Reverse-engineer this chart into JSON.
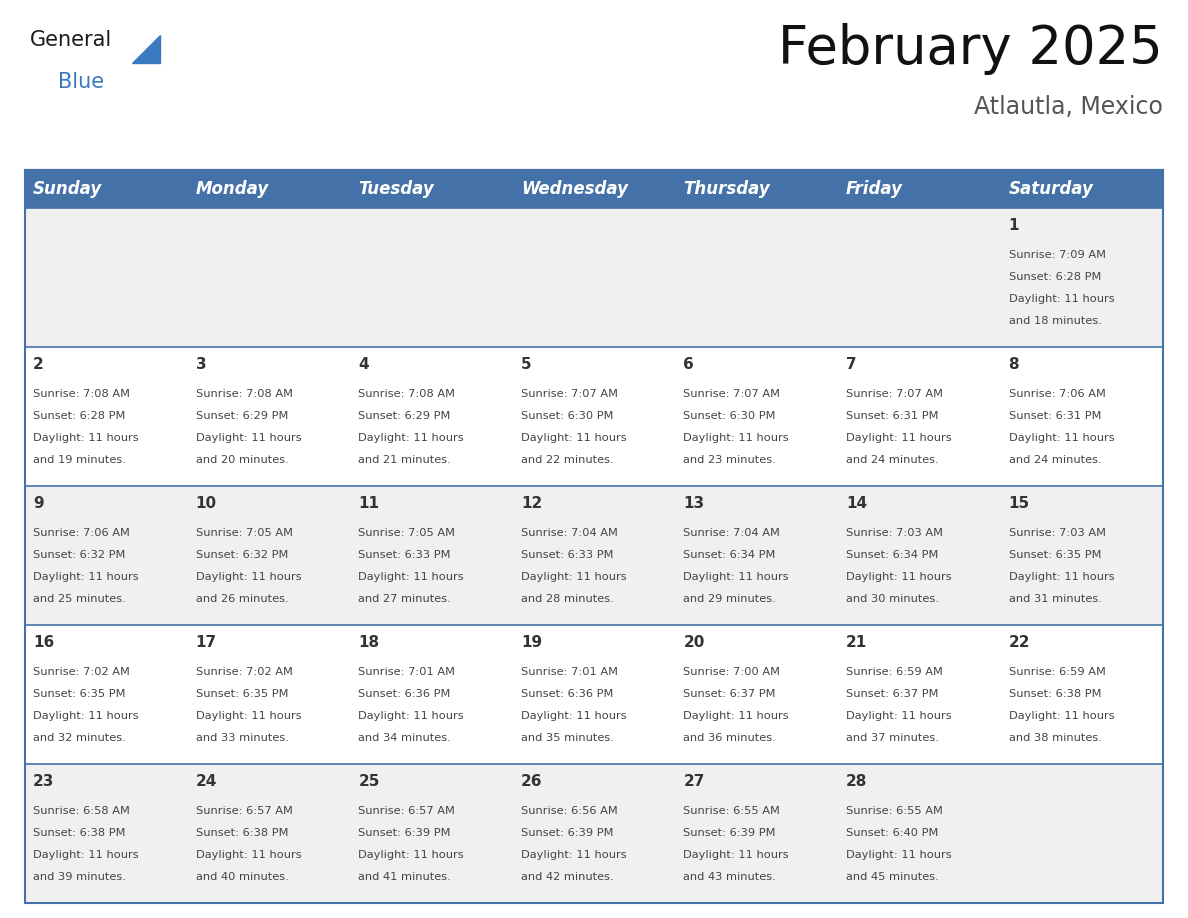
{
  "title": "February 2025",
  "subtitle": "Atlautla, Mexico",
  "header_bg_color": "#4472a8",
  "header_text_color": "#ffffff",
  "row_bg_colors": [
    "#f0f0f0",
    "#ffffff"
  ],
  "border_color": "#4472a8",
  "day_headers": [
    "Sunday",
    "Monday",
    "Tuesday",
    "Wednesday",
    "Thursday",
    "Friday",
    "Saturday"
  ],
  "days": [
    {
      "day": 1,
      "col": 6,
      "row": 0,
      "sunrise": "7:09 AM",
      "sunset": "6:28 PM",
      "daylight": "11 hours and 18 minutes."
    },
    {
      "day": 2,
      "col": 0,
      "row": 1,
      "sunrise": "7:08 AM",
      "sunset": "6:28 PM",
      "daylight": "11 hours and 19 minutes."
    },
    {
      "day": 3,
      "col": 1,
      "row": 1,
      "sunrise": "7:08 AM",
      "sunset": "6:29 PM",
      "daylight": "11 hours and 20 minutes."
    },
    {
      "day": 4,
      "col": 2,
      "row": 1,
      "sunrise": "7:08 AM",
      "sunset": "6:29 PM",
      "daylight": "11 hours and 21 minutes."
    },
    {
      "day": 5,
      "col": 3,
      "row": 1,
      "sunrise": "7:07 AM",
      "sunset": "6:30 PM",
      "daylight": "11 hours and 22 minutes."
    },
    {
      "day": 6,
      "col": 4,
      "row": 1,
      "sunrise": "7:07 AM",
      "sunset": "6:30 PM",
      "daylight": "11 hours and 23 minutes."
    },
    {
      "day": 7,
      "col": 5,
      "row": 1,
      "sunrise": "7:07 AM",
      "sunset": "6:31 PM",
      "daylight": "11 hours and 24 minutes."
    },
    {
      "day": 8,
      "col": 6,
      "row": 1,
      "sunrise": "7:06 AM",
      "sunset": "6:31 PM",
      "daylight": "11 hours and 24 minutes."
    },
    {
      "day": 9,
      "col": 0,
      "row": 2,
      "sunrise": "7:06 AM",
      "sunset": "6:32 PM",
      "daylight": "11 hours and 25 minutes."
    },
    {
      "day": 10,
      "col": 1,
      "row": 2,
      "sunrise": "7:05 AM",
      "sunset": "6:32 PM",
      "daylight": "11 hours and 26 minutes."
    },
    {
      "day": 11,
      "col": 2,
      "row": 2,
      "sunrise": "7:05 AM",
      "sunset": "6:33 PM",
      "daylight": "11 hours and 27 minutes."
    },
    {
      "day": 12,
      "col": 3,
      "row": 2,
      "sunrise": "7:04 AM",
      "sunset": "6:33 PM",
      "daylight": "11 hours and 28 minutes."
    },
    {
      "day": 13,
      "col": 4,
      "row": 2,
      "sunrise": "7:04 AM",
      "sunset": "6:34 PM",
      "daylight": "11 hours and 29 minutes."
    },
    {
      "day": 14,
      "col": 5,
      "row": 2,
      "sunrise": "7:03 AM",
      "sunset": "6:34 PM",
      "daylight": "11 hours and 30 minutes."
    },
    {
      "day": 15,
      "col": 6,
      "row": 2,
      "sunrise": "7:03 AM",
      "sunset": "6:35 PM",
      "daylight": "11 hours and 31 minutes."
    },
    {
      "day": 16,
      "col": 0,
      "row": 3,
      "sunrise": "7:02 AM",
      "sunset": "6:35 PM",
      "daylight": "11 hours and 32 minutes."
    },
    {
      "day": 17,
      "col": 1,
      "row": 3,
      "sunrise": "7:02 AM",
      "sunset": "6:35 PM",
      "daylight": "11 hours and 33 minutes."
    },
    {
      "day": 18,
      "col": 2,
      "row": 3,
      "sunrise": "7:01 AM",
      "sunset": "6:36 PM",
      "daylight": "11 hours and 34 minutes."
    },
    {
      "day": 19,
      "col": 3,
      "row": 3,
      "sunrise": "7:01 AM",
      "sunset": "6:36 PM",
      "daylight": "11 hours and 35 minutes."
    },
    {
      "day": 20,
      "col": 4,
      "row": 3,
      "sunrise": "7:00 AM",
      "sunset": "6:37 PM",
      "daylight": "11 hours and 36 minutes."
    },
    {
      "day": 21,
      "col": 5,
      "row": 3,
      "sunrise": "6:59 AM",
      "sunset": "6:37 PM",
      "daylight": "11 hours and 37 minutes."
    },
    {
      "day": 22,
      "col": 6,
      "row": 3,
      "sunrise": "6:59 AM",
      "sunset": "6:38 PM",
      "daylight": "11 hours and 38 minutes."
    },
    {
      "day": 23,
      "col": 0,
      "row": 4,
      "sunrise": "6:58 AM",
      "sunset": "6:38 PM",
      "daylight": "11 hours and 39 minutes."
    },
    {
      "day": 24,
      "col": 1,
      "row": 4,
      "sunrise": "6:57 AM",
      "sunset": "6:38 PM",
      "daylight": "11 hours and 40 minutes."
    },
    {
      "day": 25,
      "col": 2,
      "row": 4,
      "sunrise": "6:57 AM",
      "sunset": "6:39 PM",
      "daylight": "11 hours and 41 minutes."
    },
    {
      "day": 26,
      "col": 3,
      "row": 4,
      "sunrise": "6:56 AM",
      "sunset": "6:39 PM",
      "daylight": "11 hours and 42 minutes."
    },
    {
      "day": 27,
      "col": 4,
      "row": 4,
      "sunrise": "6:55 AM",
      "sunset": "6:39 PM",
      "daylight": "11 hours and 43 minutes."
    },
    {
      "day": 28,
      "col": 5,
      "row": 4,
      "sunrise": "6:55 AM",
      "sunset": "6:40 PM",
      "daylight": "11 hours and 45 minutes."
    }
  ],
  "logo_general_color": "#1a1a1a",
  "logo_blue_color": "#3a7abf",
  "title_fontsize": 38,
  "subtitle_fontsize": 17,
  "header_fontsize": 12,
  "day_num_fontsize": 11,
  "cell_text_fontsize": 8.2
}
